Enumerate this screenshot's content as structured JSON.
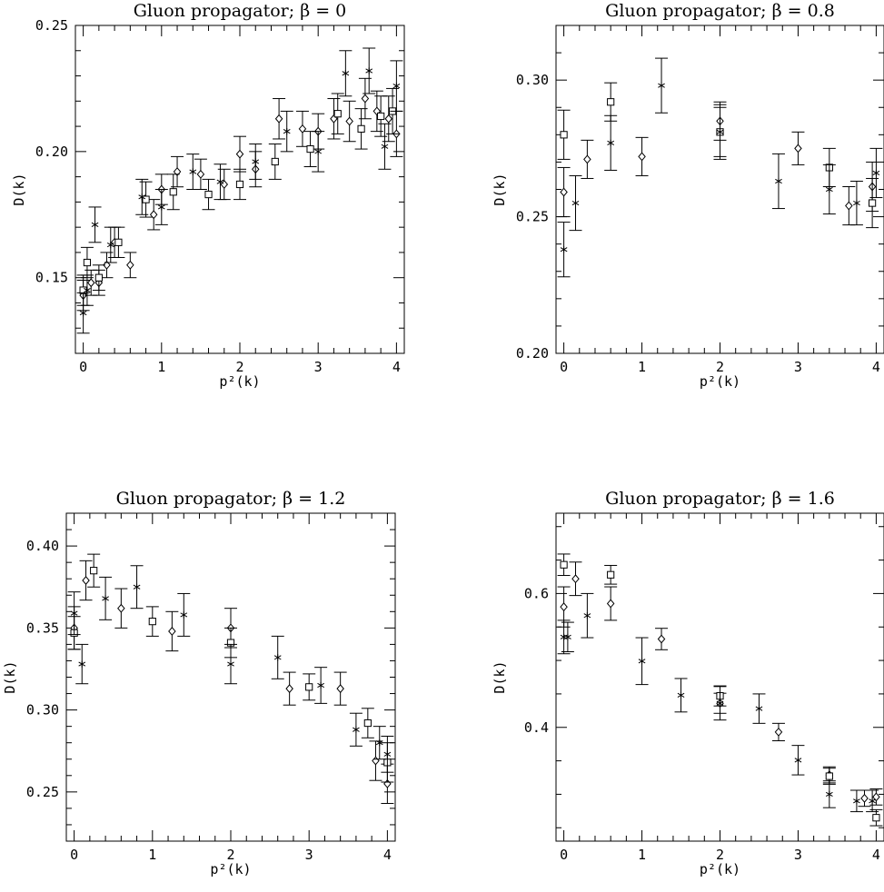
{
  "chart_data": [
    {
      "type": "scatter",
      "title": "Gluon propagator; β = 0",
      "xlabel": "p²(k)",
      "ylabel": "D(k)",
      "xlim": [
        -0.1,
        4.1
      ],
      "ylim": [
        0.12,
        0.25
      ],
      "xticks": [
        "0",
        "1",
        "2",
        "3",
        "4"
      ],
      "yticks": [
        "0.15",
        "0.20",
        "0.25"
      ],
      "series": [
        {
          "marker": "diamond",
          "points": [
            {
              "x": 0.0,
              "y": 0.143,
              "err": 0.006
            },
            {
              "x": 0.1,
              "y": 0.148,
              "err": 0.005
            },
            {
              "x": 0.2,
              "y": 0.148,
              "err": 0.005
            },
            {
              "x": 0.3,
              "y": 0.155,
              "err": 0.005
            },
            {
              "x": 0.4,
              "y": 0.164,
              "err": 0.006
            },
            {
              "x": 0.6,
              "y": 0.155,
              "err": 0.005
            },
            {
              "x": 0.9,
              "y": 0.175,
              "err": 0.006
            },
            {
              "x": 1.0,
              "y": 0.185,
              "err": 0.006
            },
            {
              "x": 1.2,
              "y": 0.192,
              "err": 0.006
            },
            {
              "x": 1.5,
              "y": 0.191,
              "err": 0.006
            },
            {
              "x": 1.8,
              "y": 0.187,
              "err": 0.006
            },
            {
              "x": 2.0,
              "y": 0.199,
              "err": 0.007
            },
            {
              "x": 2.2,
              "y": 0.193,
              "err": 0.007
            },
            {
              "x": 2.5,
              "y": 0.213,
              "err": 0.008
            },
            {
              "x": 2.8,
              "y": 0.209,
              "err": 0.007
            },
            {
              "x": 3.0,
              "y": 0.208,
              "err": 0.007
            },
            {
              "x": 3.2,
              "y": 0.213,
              "err": 0.008
            },
            {
              "x": 3.4,
              "y": 0.212,
              "err": 0.008
            },
            {
              "x": 3.6,
              "y": 0.221,
              "err": 0.008
            },
            {
              "x": 3.75,
              "y": 0.216,
              "err": 0.008
            },
            {
              "x": 3.9,
              "y": 0.213,
              "err": 0.009
            },
            {
              "x": 4.0,
              "y": 0.207,
              "err": 0.009
            }
          ]
        },
        {
          "marker": "square",
          "points": [
            {
              "x": 0.0,
              "y": 0.145,
              "err": 0.006
            },
            {
              "x": 0.05,
              "y": 0.156,
              "err": 0.006
            },
            {
              "x": 0.2,
              "y": 0.15,
              "err": 0.005
            },
            {
              "x": 0.45,
              "y": 0.164,
              "err": 0.006
            },
            {
              "x": 0.8,
              "y": 0.181,
              "err": 0.007
            },
            {
              "x": 1.15,
              "y": 0.184,
              "err": 0.007
            },
            {
              "x": 1.6,
              "y": 0.183,
              "err": 0.006
            },
            {
              "x": 2.0,
              "y": 0.187,
              "err": 0.006
            },
            {
              "x": 2.45,
              "y": 0.196,
              "err": 0.007
            },
            {
              "x": 2.9,
              "y": 0.201,
              "err": 0.007
            },
            {
              "x": 3.25,
              "y": 0.215,
              "err": 0.008
            },
            {
              "x": 3.55,
              "y": 0.209,
              "err": 0.008
            },
            {
              "x": 3.8,
              "y": 0.214,
              "err": 0.008
            },
            {
              "x": 3.95,
              "y": 0.216,
              "err": 0.009
            }
          ]
        },
        {
          "marker": "asterisk",
          "points": [
            {
              "x": 0.0,
              "y": 0.136,
              "err": 0.008
            },
            {
              "x": 0.05,
              "y": 0.145,
              "err": 0.006
            },
            {
              "x": 0.15,
              "y": 0.171,
              "err": 0.007
            },
            {
              "x": 0.35,
              "y": 0.163,
              "err": 0.007
            },
            {
              "x": 0.75,
              "y": 0.182,
              "err": 0.007
            },
            {
              "x": 1.0,
              "y": 0.178,
              "err": 0.007
            },
            {
              "x": 1.4,
              "y": 0.192,
              "err": 0.007
            },
            {
              "x": 1.75,
              "y": 0.188,
              "err": 0.007
            },
            {
              "x": 2.2,
              "y": 0.196,
              "err": 0.007
            },
            {
              "x": 2.6,
              "y": 0.208,
              "err": 0.008
            },
            {
              "x": 3.0,
              "y": 0.2,
              "err": 0.008
            },
            {
              "x": 3.35,
              "y": 0.231,
              "err": 0.009
            },
            {
              "x": 3.65,
              "y": 0.232,
              "err": 0.009
            },
            {
              "x": 3.85,
              "y": 0.202,
              "err": 0.009
            },
            {
              "x": 4.0,
              "y": 0.226,
              "err": 0.01
            }
          ]
        }
      ]
    },
    {
      "type": "scatter",
      "title": "Gluon propagator; β = 0.8",
      "xlabel": "p²(k)",
      "ylabel": "D(k)",
      "xlim": [
        -0.1,
        4.1
      ],
      "ylim": [
        0.2,
        0.32
      ],
      "xticks": [
        "0",
        "1",
        "2",
        "3",
        "4"
      ],
      "yticks": [
        "0.20",
        "0.25",
        "0.30"
      ],
      "series": [
        {
          "marker": "diamond",
          "points": [
            {
              "x": 0.0,
              "y": 0.259,
              "err": 0.009
            },
            {
              "x": 0.3,
              "y": 0.271,
              "err": 0.007
            },
            {
              "x": 1.0,
              "y": 0.272,
              "err": 0.007
            },
            {
              "x": 2.0,
              "y": 0.285,
              "err": 0.007
            },
            {
              "x": 3.0,
              "y": 0.275,
              "err": 0.006
            },
            {
              "x": 3.65,
              "y": 0.254,
              "err": 0.007
            },
            {
              "x": 3.95,
              "y": 0.261,
              "err": 0.009
            }
          ]
        },
        {
          "marker": "square",
          "points": [
            {
              "x": 0.0,
              "y": 0.28,
              "err": 0.009
            },
            {
              "x": 0.6,
              "y": 0.292,
              "err": 0.007
            },
            {
              "x": 2.0,
              "y": 0.281,
              "err": 0.009
            },
            {
              "x": 3.4,
              "y": 0.268,
              "err": 0.007
            },
            {
              "x": 3.95,
              "y": 0.255,
              "err": 0.009
            }
          ]
        },
        {
          "marker": "asterisk",
          "points": [
            {
              "x": 0.0,
              "y": 0.238,
              "err": 0.01
            },
            {
              "x": 0.15,
              "y": 0.255,
              "err": 0.01
            },
            {
              "x": 0.6,
              "y": 0.277,
              "err": 0.01
            },
            {
              "x": 1.25,
              "y": 0.298,
              "err": 0.01
            },
            {
              "x": 2.0,
              "y": 0.281,
              "err": 0.01
            },
            {
              "x": 2.75,
              "y": 0.263,
              "err": 0.01
            },
            {
              "x": 3.4,
              "y": 0.26,
              "err": 0.009
            },
            {
              "x": 3.75,
              "y": 0.255,
              "err": 0.008
            },
            {
              "x": 4.0,
              "y": 0.266,
              "err": 0.009
            }
          ]
        }
      ]
    },
    {
      "type": "scatter",
      "title": "Gluon propagator; β = 1.2",
      "xlabel": "p²(k)",
      "ylabel": "D(k)",
      "xlim": [
        -0.1,
        4.1
      ],
      "ylim": [
        0.22,
        0.42
      ],
      "xticks": [
        "0",
        "1",
        "2",
        "3",
        "4"
      ],
      "yticks": [
        "0.25",
        "0.30",
        "0.35",
        "0.40"
      ],
      "series": [
        {
          "marker": "diamond",
          "points": [
            {
              "x": 0.0,
              "y": 0.35,
              "err": 0.013
            },
            {
              "x": 0.15,
              "y": 0.379,
              "err": 0.012
            },
            {
              "x": 0.6,
              "y": 0.362,
              "err": 0.012
            },
            {
              "x": 1.25,
              "y": 0.348,
              "err": 0.012
            },
            {
              "x": 2.0,
              "y": 0.35,
              "err": 0.012
            },
            {
              "x": 2.75,
              "y": 0.313,
              "err": 0.01
            },
            {
              "x": 3.4,
              "y": 0.313,
              "err": 0.01
            },
            {
              "x": 3.85,
              "y": 0.269,
              "err": 0.012
            },
            {
              "x": 4.0,
              "y": 0.255,
              "err": 0.012
            }
          ]
        },
        {
          "marker": "square",
          "points": [
            {
              "x": 0.0,
              "y": 0.347,
              "err": 0.01
            },
            {
              "x": 0.25,
              "y": 0.385,
              "err": 0.01
            },
            {
              "x": 1.0,
              "y": 0.354,
              "err": 0.009
            },
            {
              "x": 2.0,
              "y": 0.341,
              "err": 0.009
            },
            {
              "x": 3.0,
              "y": 0.314,
              "err": 0.008
            },
            {
              "x": 3.75,
              "y": 0.292,
              "err": 0.009
            },
            {
              "x": 4.0,
              "y": 0.268,
              "err": 0.012
            }
          ]
        },
        {
          "marker": "asterisk",
          "points": [
            {
              "x": 0.0,
              "y": 0.359,
              "err": 0.013
            },
            {
              "x": 0.1,
              "y": 0.328,
              "err": 0.012
            },
            {
              "x": 0.4,
              "y": 0.368,
              "err": 0.013
            },
            {
              "x": 0.8,
              "y": 0.375,
              "err": 0.013
            },
            {
              "x": 1.4,
              "y": 0.358,
              "err": 0.013
            },
            {
              "x": 2.0,
              "y": 0.328,
              "err": 0.012
            },
            {
              "x": 2.6,
              "y": 0.332,
              "err": 0.013
            },
            {
              "x": 3.15,
              "y": 0.315,
              "err": 0.011
            },
            {
              "x": 3.6,
              "y": 0.288,
              "err": 0.01
            },
            {
              "x": 3.9,
              "y": 0.28,
              "err": 0.01
            },
            {
              "x": 4.0,
              "y": 0.273,
              "err": 0.011
            }
          ]
        }
      ]
    },
    {
      "type": "scatter",
      "title": "Gluon propagator; β = 1.6",
      "xlabel": "p²(k)",
      "ylabel": "D(k)",
      "xlim": [
        -0.1,
        4.1
      ],
      "ylim": [
        0.23,
        0.72
      ],
      "xticks": [
        "0",
        "1",
        "2",
        "3",
        "4"
      ],
      "yticks": [
        "0.4",
        "0.6"
      ],
      "series": [
        {
          "marker": "diamond",
          "points": [
            {
              "x": 0.0,
              "y": 0.58,
              "err": 0.03
            },
            {
              "x": 0.15,
              "y": 0.622,
              "err": 0.025
            },
            {
              "x": 0.6,
              "y": 0.585,
              "err": 0.025
            },
            {
              "x": 1.25,
              "y": 0.532,
              "err": 0.016
            },
            {
              "x": 2.0,
              "y": 0.436,
              "err": 0.015
            },
            {
              "x": 2.75,
              "y": 0.393,
              "err": 0.013
            },
            {
              "x": 3.4,
              "y": 0.329,
              "err": 0.012
            },
            {
              "x": 3.85,
              "y": 0.294,
              "err": 0.012
            },
            {
              "x": 4.0,
              "y": 0.296,
              "err": 0.012
            }
          ]
        },
        {
          "marker": "square",
          "points": [
            {
              "x": 0.0,
              "y": 0.643,
              "err": 0.016
            },
            {
              "x": 0.6,
              "y": 0.628,
              "err": 0.014
            },
            {
              "x": 2.0,
              "y": 0.447,
              "err": 0.015
            },
            {
              "x": 3.4,
              "y": 0.327,
              "err": 0.012
            },
            {
              "x": 4.0,
              "y": 0.265,
              "err": 0.012
            }
          ]
        },
        {
          "marker": "asterisk",
          "points": [
            {
              "x": 0.0,
              "y": 0.535,
              "err": 0.025
            },
            {
              "x": 0.05,
              "y": 0.535,
              "err": 0.022
            },
            {
              "x": 0.3,
              "y": 0.567,
              "err": 0.033
            },
            {
              "x": 1.0,
              "y": 0.499,
              "err": 0.035
            },
            {
              "x": 1.5,
              "y": 0.448,
              "err": 0.025
            },
            {
              "x": 2.0,
              "y": 0.436,
              "err": 0.025
            },
            {
              "x": 2.5,
              "y": 0.428,
              "err": 0.022
            },
            {
              "x": 3.0,
              "y": 0.351,
              "err": 0.022
            },
            {
              "x": 3.4,
              "y": 0.3,
              "err": 0.02
            },
            {
              "x": 3.75,
              "y": 0.29,
              "err": 0.016
            },
            {
              "x": 3.95,
              "y": 0.29,
              "err": 0.016
            }
          ]
        }
      ]
    }
  ]
}
